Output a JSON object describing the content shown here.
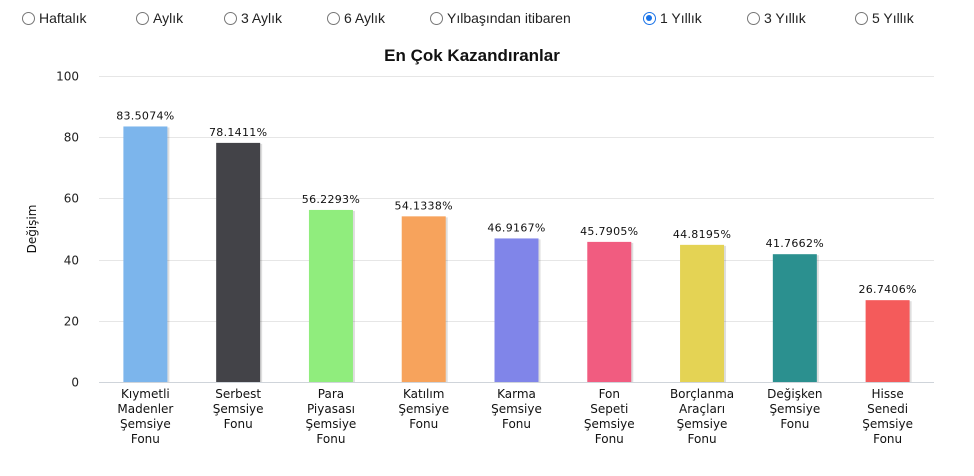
{
  "period_options": [
    {
      "label": "Haftalık",
      "checked": false
    },
    {
      "label": "Aylık",
      "checked": false
    },
    {
      "label": "3 Aylık",
      "checked": false
    },
    {
      "label": "6 Aylık",
      "checked": false
    },
    {
      "label": "Yılbaşından itibaren",
      "checked": false
    },
    {
      "label": "1 Yıllık",
      "checked": true
    },
    {
      "label": "3 Yıllık",
      "checked": false
    },
    {
      "label": "5 Yıllık",
      "checked": false
    }
  ],
  "chart_data": {
    "type": "bar",
    "title": "En Çok Kazandıranlar",
    "xlabel": "",
    "ylabel": "Değişim",
    "ylim": [
      0,
      100
    ],
    "yticks": [
      0,
      20,
      40,
      60,
      80,
      100
    ],
    "grid": true,
    "categories": [
      [
        "Kıymetli",
        "Madenler",
        "Şemsiye",
        "Fonu"
      ],
      [
        "Serbest",
        "Şemsiye",
        "Fonu"
      ],
      [
        "Para",
        "Piyasası",
        "Şemsiye",
        "Fonu"
      ],
      [
        "Katılım",
        "Şemsiye",
        "Fonu"
      ],
      [
        "Karma",
        "Şemsiye",
        "Fonu"
      ],
      [
        "Fon",
        "Sepeti",
        "Şemsiye",
        "Fonu"
      ],
      [
        "Borçlanma",
        "Araçları",
        "Şemsiye",
        "Fonu"
      ],
      [
        "Değişken",
        "Şemsiye",
        "Fonu"
      ],
      [
        "Hisse",
        "Senedi",
        "Şemsiye",
        "Fonu"
      ]
    ],
    "values": [
      83.5074,
      78.1411,
      56.2293,
      54.1338,
      46.9167,
      45.7905,
      44.8195,
      41.7662,
      26.7406
    ],
    "value_labels": [
      "83.5074%",
      "78.1411%",
      "56.2293%",
      "54.1338%",
      "46.9167%",
      "45.7905%",
      "44.8195%",
      "41.7662%",
      "26.7406%"
    ],
    "colors": [
      "#7cb5ec",
      "#434348",
      "#90ed7d",
      "#f7a35c",
      "#8085e9",
      "#f15c80",
      "#e4d354",
      "#2b908f",
      "#f45b5b"
    ]
  }
}
